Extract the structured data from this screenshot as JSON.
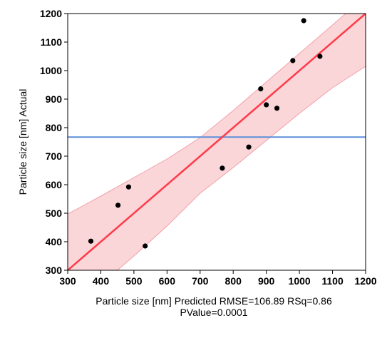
{
  "chart_data": {
    "type": "scatter",
    "title": "",
    "xlabel": "Particle size [nm] Predicted RMSE=106.89 RSq=0.86",
    "xlabel_line2": "PValue=0.0001",
    "ylabel": "Particle size [nm] Actual",
    "xlim": [
      300,
      1200
    ],
    "ylim": [
      300,
      1200
    ],
    "xticks": [
      "300",
      "400",
      "500",
      "600",
      "700",
      "800",
      "900",
      "1000",
      "1100",
      "1200"
    ],
    "yticks": [
      "300",
      "400",
      "500",
      "600",
      "700",
      "800",
      "900",
      "1000",
      "1100",
      "1200"
    ],
    "grid": false,
    "points": [
      {
        "x": 370,
        "y": 402
      },
      {
        "x": 452,
        "y": 528
      },
      {
        "x": 484,
        "y": 592
      },
      {
        "x": 534,
        "y": 385
      },
      {
        "x": 767,
        "y": 658
      },
      {
        "x": 847,
        "y": 732
      },
      {
        "x": 883,
        "y": 936
      },
      {
        "x": 900,
        "y": 880
      },
      {
        "x": 932,
        "y": 868
      },
      {
        "x": 980,
        "y": 1035
      },
      {
        "x": 1013,
        "y": 1175
      },
      {
        "x": 1062,
        "y": 1050
      }
    ],
    "fit_line": {
      "x": [
        300,
        1200
      ],
      "y": [
        300,
        1200
      ],
      "color": "#ff3b4a"
    },
    "confidence_band": {
      "x": [
        300,
        400,
        500,
        600,
        700,
        800,
        900,
        1000,
        1100,
        1200
      ],
      "upper": [
        497,
        560,
        625,
        690,
        765,
        860,
        960,
        1060,
        1160,
        1260
      ],
      "lower": [
        150,
        250,
        350,
        455,
        570,
        660,
        755,
        850,
        940,
        1015
      ],
      "color": "#f8c8cc"
    },
    "mean_line": {
      "y": 767,
      "color": "#5b8fd9"
    },
    "point_color": "#000000"
  }
}
